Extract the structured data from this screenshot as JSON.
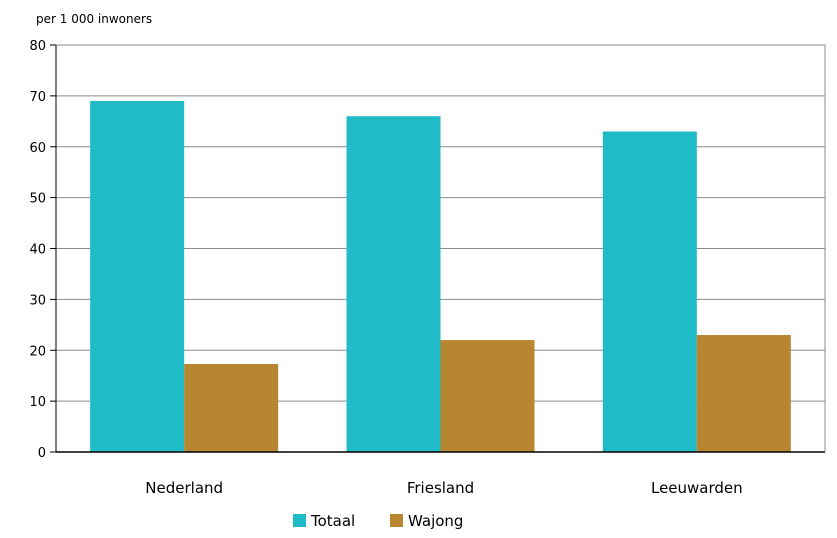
{
  "chart_data": {
    "type": "bar",
    "ylabel": "per 1 000 inwoners",
    "categories": [
      "Nederland",
      "Friesland",
      "Leeuwarden"
    ],
    "series": [
      {
        "name": "Totaal",
        "values": [
          69,
          66,
          63
        ],
        "color": "#1FBBC6"
      },
      {
        "name": "Wajong",
        "values": [
          17.3,
          22,
          23
        ],
        "color": "#B88530"
      }
    ],
    "ylim": [
      0,
      80
    ],
    "yticks": [
      0,
      10,
      20,
      30,
      40,
      50,
      60,
      70,
      80
    ],
    "grid": true,
    "legend": "bottom"
  }
}
